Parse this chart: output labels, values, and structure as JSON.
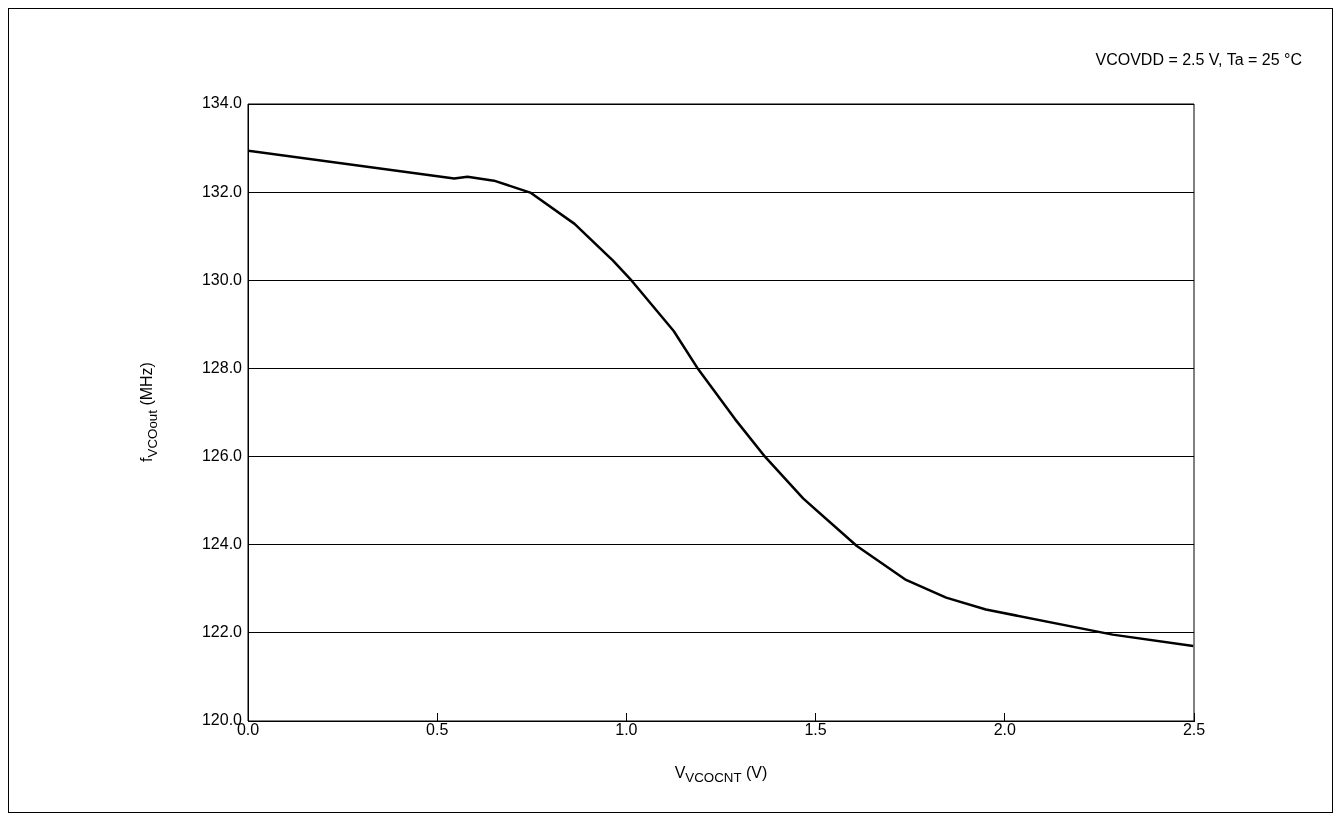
{
  "chart_data": {
    "type": "line",
    "xlabel": "V$_{VCOCNT}$ (V)",
    "ylabel": "f$_{VCOout}$ (MHz)",
    "annotations": [
      "VCOVDD = 2.5 V, Ta = 25 °C"
    ],
    "series": [
      {
        "color": "#000000",
        "x": [
          0,
          0.545,
          0.58,
          0.65,
          0.746,
          0.863,
          0.964,
          1.014,
          1.125,
          1.19,
          1.287,
          1.368,
          1.467,
          1.609,
          1.739,
          1.845,
          1.95,
          2.285,
          2.498
        ],
        "values": [
          132.94,
          132.31,
          132.35,
          132.26,
          131.99,
          131.28,
          130.45,
          129.99,
          128.85,
          127.98,
          126.85,
          125.98,
          125.05,
          123.97,
          123.2,
          122.8,
          122.53,
          121.96,
          121.7
        ]
      }
    ],
    "xlim": [
      0,
      2.5
    ],
    "xticks": [
      {
        "value": 0,
        "label": "0.0"
      },
      {
        "value": 0.5,
        "label": "0.5"
      },
      {
        "value": 1,
        "label": "1.0"
      },
      {
        "value": 1.5,
        "label": "1.5"
      },
      {
        "value": 2,
        "label": "2.0"
      },
      {
        "value": 2.5,
        "label": "2.5"
      }
    ],
    "ylim": [
      120,
      134
    ],
    "yticks": [
      {
        "value": 120,
        "label": "120.0"
      },
      {
        "value": 122,
        "label": "122.0"
      },
      {
        "value": 124,
        "label": "124.0"
      },
      {
        "value": 126,
        "label": "126.0"
      },
      {
        "value": 128,
        "label": "128.0"
      },
      {
        "value": 130,
        "label": "130.0"
      },
      {
        "value": 132,
        "label": "132.0"
      },
      {
        "value": 134,
        "label": "134.0"
      }
    ],
    "grid": "y",
    "legend": false,
    "marker": "none",
    "line_style": "solid"
  }
}
